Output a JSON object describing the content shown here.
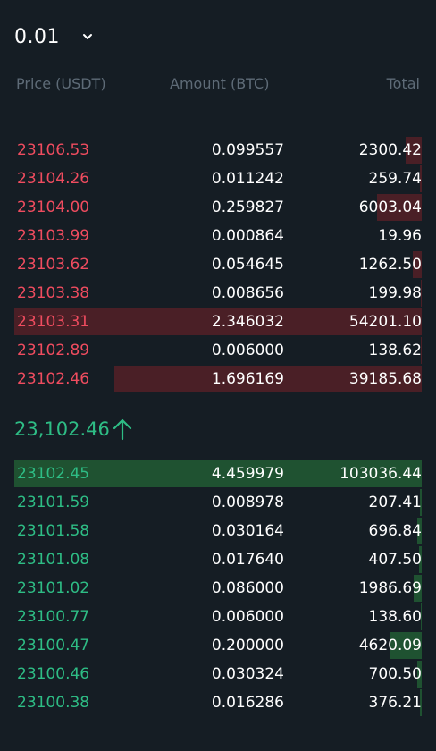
{
  "precision": {
    "value": "0.01",
    "icon": "chevron-down-icon"
  },
  "header": {
    "price": "Price (USDT)",
    "amount": "Amount (BTC)",
    "total": "Total"
  },
  "colors": {
    "background": "#151d24",
    "ask": "#ef4c5f",
    "bid": "#2ebd85",
    "ask_depth": "#4a1f26",
    "bid_depth": "#1f5231",
    "header": "#5e6b77"
  },
  "asks": [
    {
      "price": "23106.53",
      "amount": "0.099557",
      "total": "2300.42",
      "depth": 0.04
    },
    {
      "price": "23104.26",
      "amount": "0.011242",
      "total": "259.74",
      "depth": 0.004
    },
    {
      "price": "23104.00",
      "amount": "0.259827",
      "total": "6003.04",
      "depth": 0.11
    },
    {
      "price": "23103.99",
      "amount": "0.000864",
      "total": "19.96",
      "depth": 0.0
    },
    {
      "price": "23103.62",
      "amount": "0.054645",
      "total": "1262.50",
      "depth": 0.022
    },
    {
      "price": "23103.38",
      "amount": "0.008656",
      "total": "199.98",
      "depth": 0.003
    },
    {
      "price": "23103.31",
      "amount": "2.346032",
      "total": "54201.10",
      "depth": 1.0
    },
    {
      "price": "23102.89",
      "amount": "0.006000",
      "total": "138.62",
      "depth": 0.002
    },
    {
      "price": "23102.46",
      "amount": "1.696169",
      "total": "39185.68",
      "depth": 0.755
    }
  ],
  "mid_price": {
    "value": "23,102.46",
    "icon": "arrow-up-icon"
  },
  "bids": [
    {
      "price": "23102.45",
      "amount": "4.459979",
      "total": "103036.44",
      "depth": 1.0
    },
    {
      "price": "23101.59",
      "amount": "0.008978",
      "total": "207.41",
      "depth": 0.005
    },
    {
      "price": "23101.58",
      "amount": "0.030164",
      "total": "696.84",
      "depth": 0.01
    },
    {
      "price": "23101.08",
      "amount": "0.017640",
      "total": "407.50",
      "depth": 0.006
    },
    {
      "price": "23101.02",
      "amount": "0.086000",
      "total": "1986.69",
      "depth": 0.02
    },
    {
      "price": "23100.77",
      "amount": "0.006000",
      "total": "138.60",
      "depth": 0.002
    },
    {
      "price": "23100.47",
      "amount": "0.200000",
      "total": "4620.09",
      "depth": 0.08
    },
    {
      "price": "23100.46",
      "amount": "0.030324",
      "total": "700.50",
      "depth": 0.01
    },
    {
      "price": "23100.38",
      "amount": "0.016286",
      "total": "376.21",
      "depth": 0.005
    }
  ]
}
